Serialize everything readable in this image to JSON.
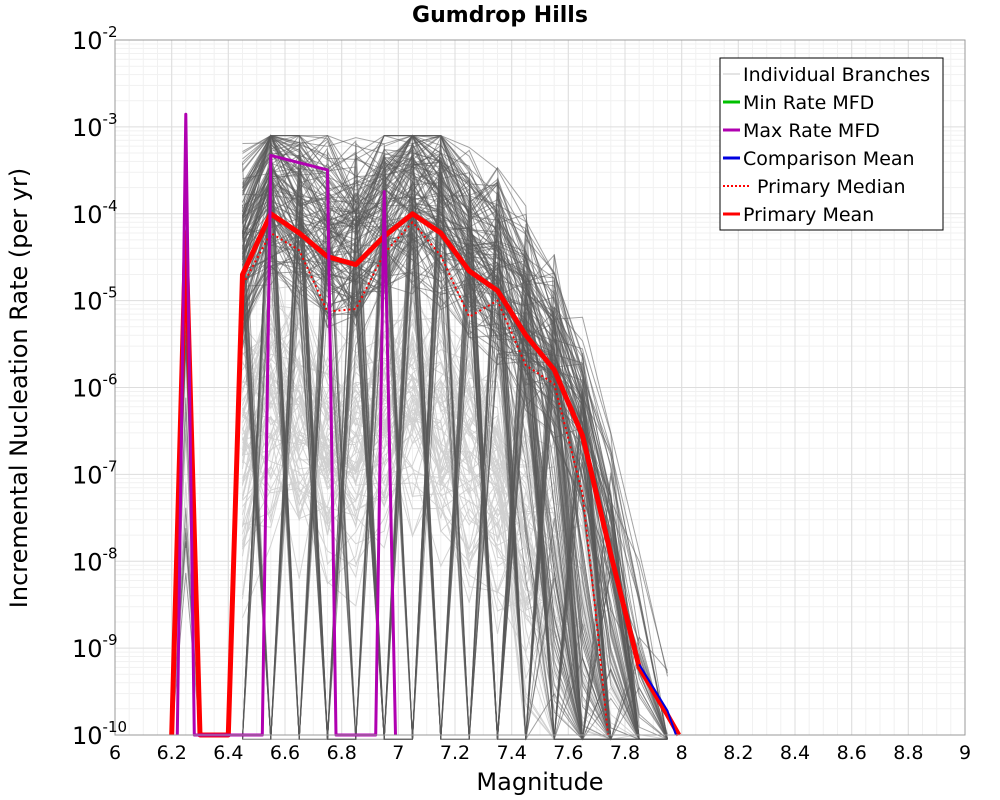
{
  "chart_data": {
    "type": "line",
    "title": "Gumdrop Hills",
    "xlabel": "Magnitude",
    "ylabel": "Incremental Nucleation Rate (per yr)",
    "xlim": [
      6,
      9
    ],
    "ylim": [
      1e-10,
      0.01
    ],
    "yscale": "log",
    "grid": true,
    "legend_position": "top-right",
    "x_ticks": [
      "6",
      "6.2",
      "6.4",
      "6.6",
      "6.8",
      "7",
      "7.2",
      "7.4",
      "7.6",
      "7.8",
      "8",
      "8.2",
      "8.4",
      "8.6",
      "8.8",
      "9"
    ],
    "y_ticks": [
      {
        "base": "10",
        "exp": "-10"
      },
      {
        "base": "10",
        "exp": "-9"
      },
      {
        "base": "10",
        "exp": "-8"
      },
      {
        "base": "10",
        "exp": "-7"
      },
      {
        "base": "10",
        "exp": "-6"
      },
      {
        "base": "10",
        "exp": "-5"
      },
      {
        "base": "10",
        "exp": "-4"
      },
      {
        "base": "10",
        "exp": "-3"
      },
      {
        "base": "10",
        "exp": "-2"
      }
    ],
    "legend": [
      {
        "label": "Individual Branches",
        "color": "#c8c8c8",
        "style": "solid"
      },
      {
        "label": "Min Rate MFD",
        "color": "#00c000",
        "style": "solid"
      },
      {
        "label": "Max Rate MFD",
        "color": "#b000b0",
        "style": "solid"
      },
      {
        "label": "Comparison Mean",
        "color": "#0000e0",
        "style": "solid"
      },
      {
        "label": "Primary Median",
        "color": "#ff0000",
        "style": "dotted"
      },
      {
        "label": "Primary Mean",
        "color": "#ff0000",
        "style": "solid"
      }
    ],
    "series": [
      {
        "name": "Primary Mean",
        "color": "#ff0000",
        "width": 5,
        "points": [
          [
            6.2,
            1e-10
          ],
          [
            6.25,
            6e-05
          ],
          [
            6.3,
            1e-10
          ],
          [
            6.4,
            1e-10
          ],
          [
            6.45,
            2e-05
          ],
          [
            6.55,
            0.0001
          ],
          [
            6.65,
            6e-05
          ],
          [
            6.75,
            3.2e-05
          ],
          [
            6.85,
            2.6e-05
          ],
          [
            6.95,
            5.5e-05
          ],
          [
            7.05,
            0.0001
          ],
          [
            7.15,
            6e-05
          ],
          [
            7.25,
            2.2e-05
          ],
          [
            7.35,
            1.3e-05
          ],
          [
            7.45,
            4e-06
          ],
          [
            7.55,
            1.6e-06
          ],
          [
            7.65,
            2.8e-07
          ],
          [
            7.75,
            1.2e-08
          ],
          [
            7.85,
            6e-10
          ],
          [
            7.95,
            1.7e-10
          ],
          [
            7.99,
            1e-10
          ]
        ]
      },
      {
        "name": "Primary Median",
        "color": "#ff0000",
        "width": 2,
        "dash": "2,3",
        "points": [
          [
            6.2,
            1e-10
          ],
          [
            6.25,
            5e-05
          ],
          [
            6.3,
            1e-10
          ],
          [
            6.4,
            1e-10
          ],
          [
            6.45,
            1.5e-05
          ],
          [
            6.55,
            6e-05
          ],
          [
            6.65,
            3.8e-05
          ],
          [
            6.75,
            7.5e-06
          ],
          [
            6.85,
            8e-06
          ],
          [
            6.95,
            3.5e-05
          ],
          [
            7.05,
            8e-05
          ],
          [
            7.15,
            3.3e-05
          ],
          [
            7.25,
            6.5e-06
          ],
          [
            7.35,
            1e-05
          ],
          [
            7.45,
            1.8e-06
          ],
          [
            7.55,
            1.1e-06
          ],
          [
            7.65,
            6e-08
          ],
          [
            7.7,
            2e-09
          ],
          [
            7.74,
            1e-10
          ]
        ]
      },
      {
        "name": "Max Rate MFD",
        "color": "#b000b0",
        "width": 3,
        "points": [
          [
            6.22,
            1e-10
          ],
          [
            6.25,
            0.0014
          ],
          [
            6.28,
            1e-10
          ],
          [
            6.52,
            1e-10
          ],
          [
            6.55,
            0.00047
          ],
          [
            6.75,
            0.00032
          ],
          [
            6.78,
            1e-10
          ],
          [
            6.92,
            1e-10
          ],
          [
            6.95,
            0.00018
          ],
          [
            6.99,
            1e-10
          ]
        ]
      },
      {
        "name": "Comparison Mean",
        "color": "#0000e0",
        "width": 2,
        "points": [
          [
            7.85,
            6.5e-10
          ],
          [
            7.95,
            1.9e-10
          ],
          [
            7.98,
            1e-10
          ]
        ]
      }
    ]
  }
}
